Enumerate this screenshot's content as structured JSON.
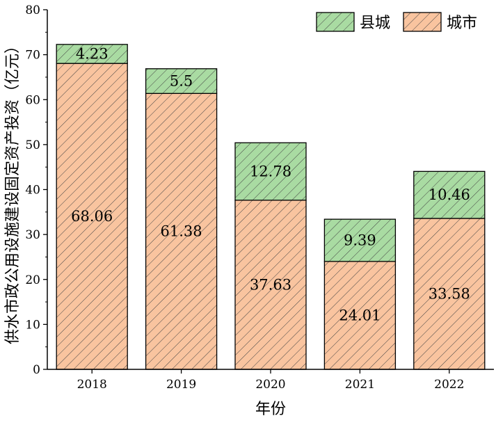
{
  "chart_data": {
    "type": "bar",
    "stacked": true,
    "categories": [
      "2018",
      "2019",
      "2020",
      "2021",
      "2022"
    ],
    "series": [
      {
        "name": "城市",
        "values": [
          68.06,
          61.38,
          37.63,
          24.01,
          33.58
        ],
        "color": "#f9c49f",
        "hatch": "diagonal"
      },
      {
        "name": "县城",
        "values": [
          4.23,
          5.5,
          12.78,
          9.39,
          10.46
        ],
        "color": "#a9dba2",
        "hatch": "diagonal"
      }
    ],
    "data_labels": {
      "城市": [
        "68.06",
        "61.38",
        "37.63",
        "24.01",
        "33.58"
      ],
      "县城": [
        "4.23",
        "5.5",
        "12.78",
        "9.39",
        "10.46"
      ]
    },
    "xlabel": "年份",
    "ylabel": "供水市政公用设施建设固定资产投资（亿元）",
    "ylim": [
      0,
      80
    ],
    "yticks": [
      0,
      10,
      20,
      30,
      40,
      50,
      60,
      70,
      80
    ],
    "grid": false,
    "legend": {
      "placement": "top-right",
      "order": [
        "县城",
        "城市"
      ]
    }
  }
}
